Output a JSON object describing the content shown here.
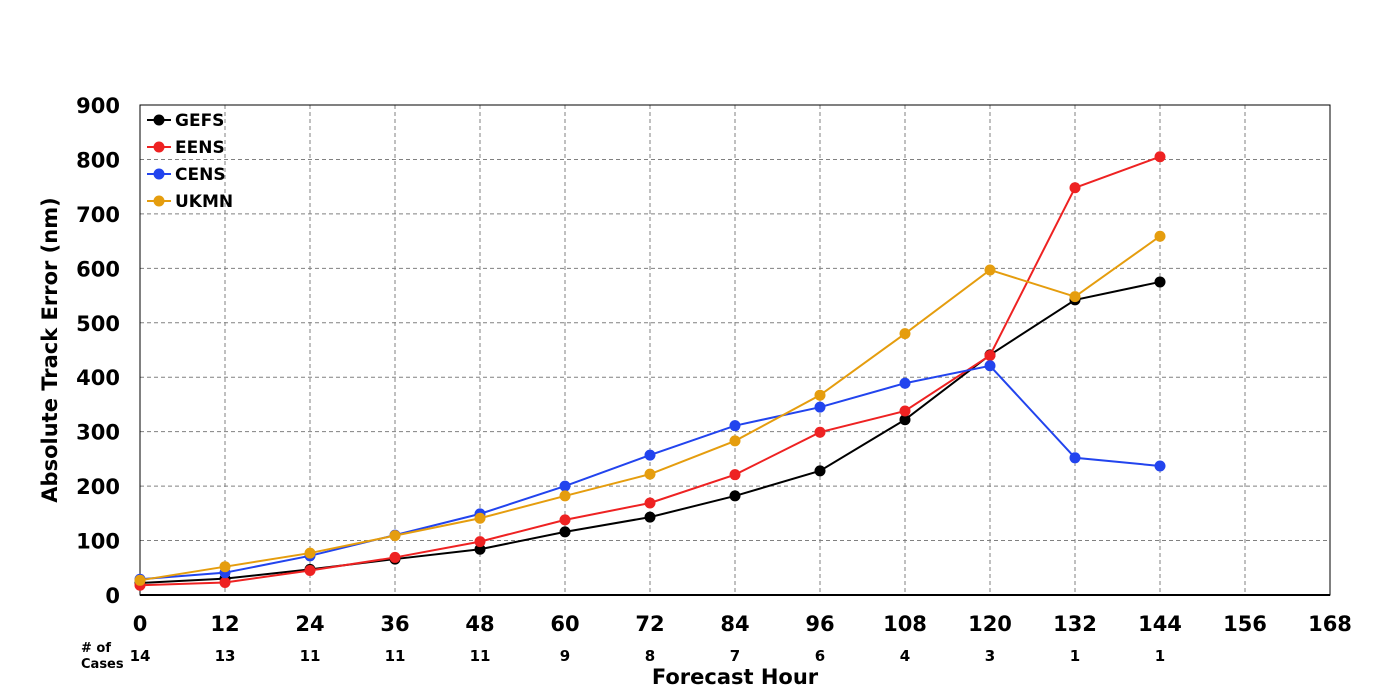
{
  "chart_data": {
    "type": "line",
    "title": "",
    "xlabel": "Forecast Hour",
    "ylabel": "Absolute Track Error (nm)",
    "xlim": [
      0,
      168
    ],
    "ylim": [
      0,
      900
    ],
    "x_ticks": [
      0,
      12,
      24,
      36,
      48,
      60,
      72,
      84,
      96,
      108,
      120,
      132,
      144,
      156,
      168
    ],
    "y_ticks": [
      0,
      100,
      200,
      300,
      400,
      500,
      600,
      700,
      800,
      900
    ],
    "grid": true,
    "legend_position": "top-left",
    "series": [
      {
        "name": "GEFS",
        "color": "#000000",
        "x": [
          0,
          12,
          24,
          36,
          48,
          60,
          72,
          84,
          96,
          108,
          120,
          132,
          144
        ],
        "values": [
          22,
          30,
          47,
          66,
          84,
          116,
          143,
          182,
          228,
          322,
          441,
          542,
          575
        ]
      },
      {
        "name": "EENS",
        "color": "#ee2222",
        "x": [
          0,
          12,
          24,
          36,
          48,
          60,
          72,
          84,
          96,
          108,
          120,
          132,
          144
        ],
        "values": [
          18,
          23,
          45,
          69,
          98,
          138,
          169,
          221,
          299,
          338,
          440,
          748,
          805
        ]
      },
      {
        "name": "CENS",
        "color": "#2244ee",
        "x": [
          0,
          12,
          24,
          36,
          48,
          60,
          72,
          84,
          96,
          108,
          120,
          132,
          144
        ],
        "values": [
          29,
          41,
          72,
          110,
          149,
          200,
          257,
          311,
          345,
          389,
          421,
          252,
          237
        ]
      },
      {
        "name": "UKMN",
        "color": "#e59d0e",
        "x": [
          0,
          12,
          24,
          36,
          48,
          60,
          72,
          84,
          96,
          108,
          120,
          132,
          144
        ],
        "values": [
          27,
          52,
          77,
          109,
          141,
          182,
          222,
          283,
          367,
          480,
          597,
          548,
          659
        ]
      }
    ],
    "cases": {
      "label_line1": "# of",
      "label_line2": "Cases",
      "x": [
        0,
        12,
        24,
        36,
        48,
        60,
        72,
        84,
        96,
        108,
        120,
        132,
        144
      ],
      "counts": [
        "14",
        "13",
        "11",
        "11",
        "11",
        "9",
        "8",
        "7",
        "6",
        "4",
        "3",
        "1",
        "1"
      ]
    }
  }
}
